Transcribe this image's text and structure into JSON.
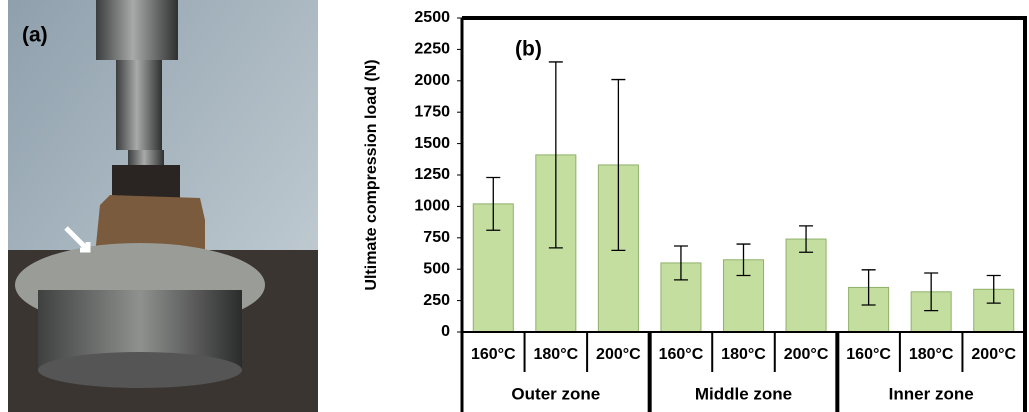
{
  "image_panel": {
    "label": "(a)"
  },
  "chart_data": {
    "type": "bar",
    "annotation": "(b)",
    "y_label": "Ultimate compression  load (N)",
    "categories": [
      "160°C",
      "180°C",
      "200°C",
      "160°C",
      "180°C",
      "200°C",
      "160°C",
      "180°C",
      "200°C"
    ],
    "group_labels": [
      "Outer zone",
      "Middle zone",
      "Inner zone"
    ],
    "values": [
      1020,
      1410,
      1330,
      550,
      575,
      740,
      355,
      320,
      340
    ],
    "errors": [
      210,
      740,
      680,
      135,
      125,
      105,
      140,
      150,
      110
    ],
    "color": "#c4dea0",
    "ylim": [
      0,
      2500
    ],
    "yticks": [
      0,
      250,
      500,
      750,
      1000,
      1250,
      1500,
      1750,
      2000,
      2250,
      2500
    ],
    "grid": false
  }
}
